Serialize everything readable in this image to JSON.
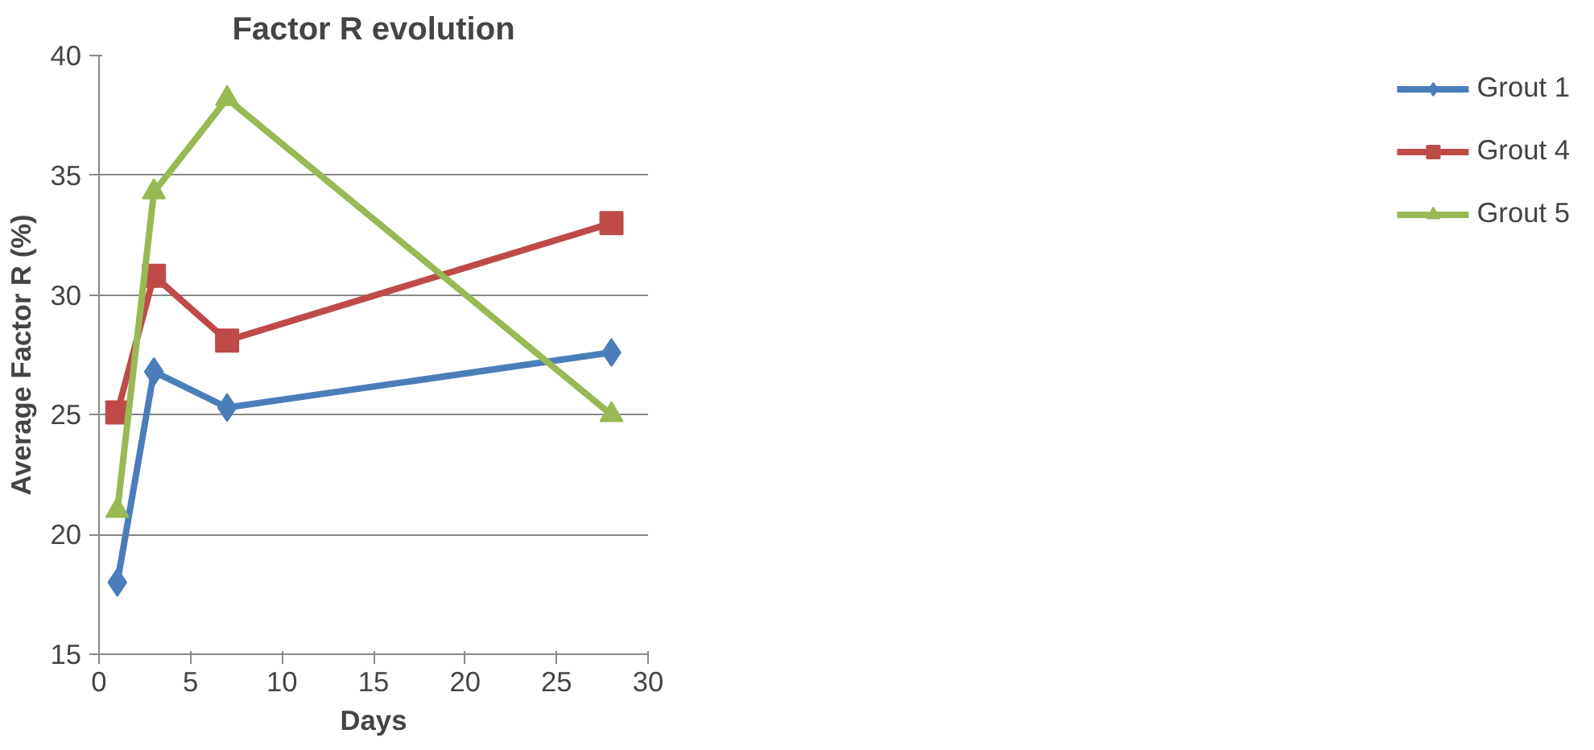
{
  "chart_data": {
    "type": "line",
    "title": "Factor R evolution",
    "xlabel": "Days",
    "ylabel": "Average Factor R (%)",
    "x": [
      1,
      3,
      7,
      28
    ],
    "series": [
      {
        "name": "Grout 1",
        "color": "#4a7ebb",
        "marker": "diamond",
        "values": [
          18.0,
          26.8,
          25.3,
          27.6
        ]
      },
      {
        "name": "Grout 4",
        "color": "#be4b48",
        "marker": "square",
        "values": [
          25.1,
          30.8,
          28.1,
          33.0
        ]
      },
      {
        "name": "Grout 5",
        "color": "#98b954",
        "marker": "triangle",
        "values": [
          21.0,
          34.3,
          38.2,
          25.0
        ]
      }
    ],
    "xlim": [
      0,
      30
    ],
    "xticks": [
      0,
      5,
      10,
      15,
      20,
      25,
      30
    ],
    "ylim": [
      15,
      40
    ],
    "yticks": [
      15,
      20,
      25,
      30,
      35,
      40
    ],
    "grid": "y",
    "legend": "right",
    "line_style": "solid"
  }
}
